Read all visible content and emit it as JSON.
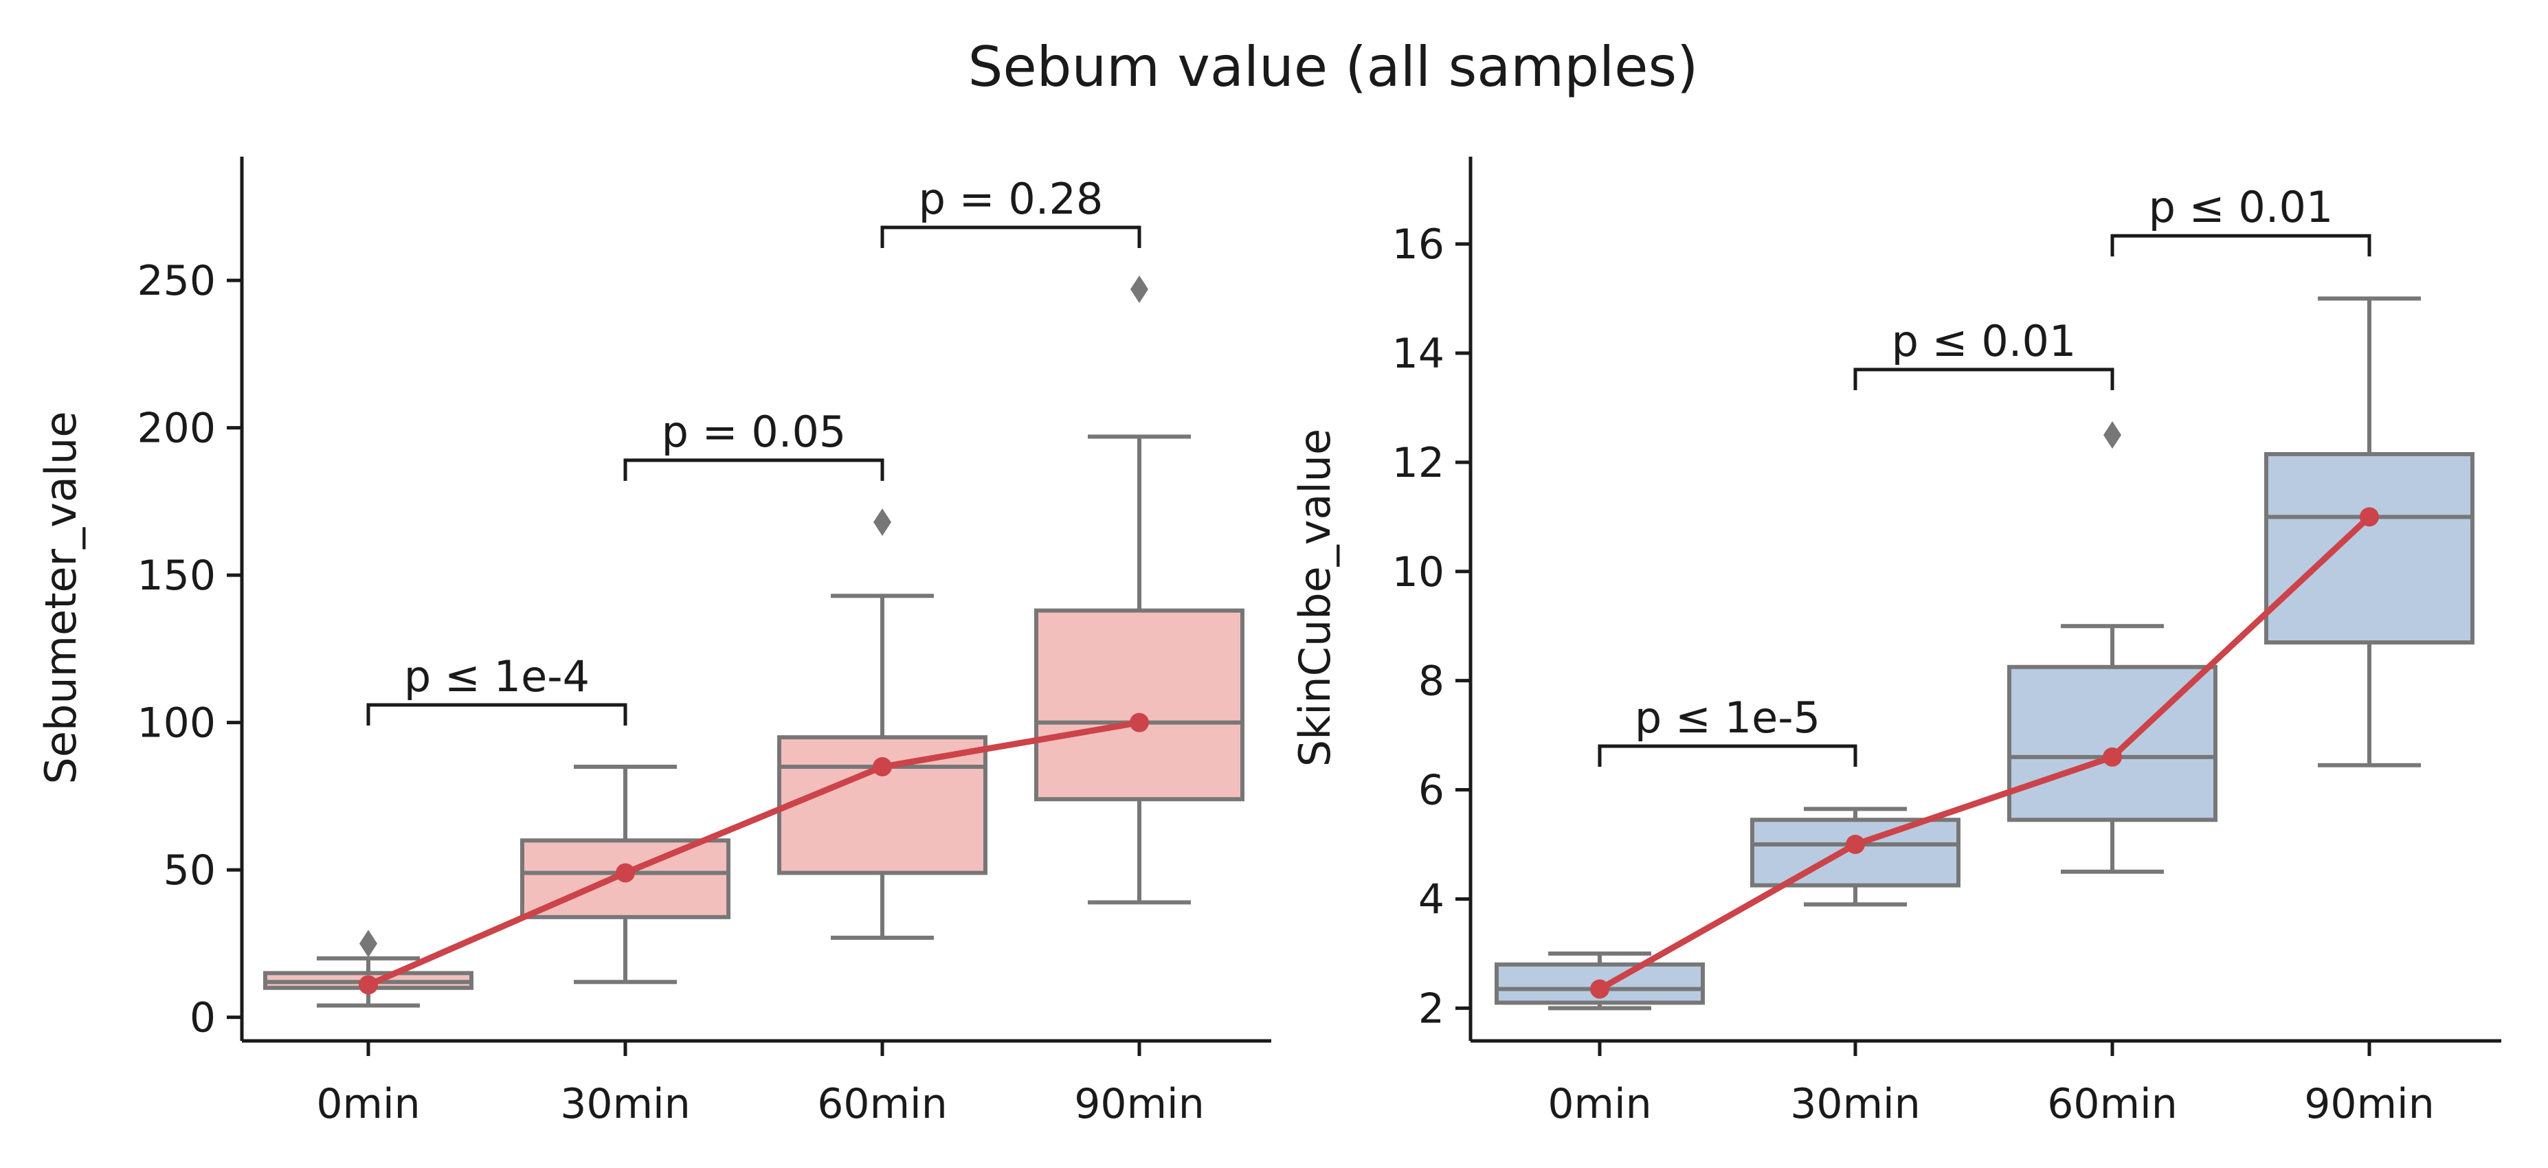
{
  "figure_title": "Sebum value (all samples)",
  "colors": {
    "box_left": "#f3bfbd",
    "box_right": "#b9cbe1",
    "box_edge": "#777777",
    "mean_line": "#cc4349",
    "axis": "#1a1a1a"
  },
  "chart_data": [
    {
      "type": "box",
      "title": "",
      "xlabel": "",
      "ylabel": "Sebumeter_value",
      "ylim": [
        -8,
        292
      ],
      "yticks": [
        0,
        50,
        100,
        150,
        200,
        250
      ],
      "ytick_labels": [
        "0",
        "50",
        "100",
        "150",
        "200",
        "250"
      ],
      "categories": [
        "0min",
        "30min",
        "60min",
        "90min"
      ],
      "boxes": [
        {
          "whisker_low": 4,
          "q1": 10,
          "median": 12,
          "q3": 15,
          "whisker_high": 20,
          "outliers": [
            25
          ]
        },
        {
          "whisker_low": 12,
          "q1": 34,
          "median": 49,
          "q3": 60,
          "whisker_high": 85,
          "outliers": []
        },
        {
          "whisker_low": 27,
          "q1": 49,
          "median": 85,
          "q3": 95,
          "whisker_high": 143,
          "outliers": [
            168
          ]
        },
        {
          "whisker_low": 39,
          "q1": 74,
          "median": 100,
          "q3": 138,
          "whisker_high": 197,
          "outliers": [
            247
          ]
        }
      ],
      "mean_line": [
        11,
        49,
        85,
        100
      ],
      "annotations": [
        {
          "from": 0,
          "to": 1,
          "y": 106,
          "label": "p ≤ 1e-4"
        },
        {
          "from": 1,
          "to": 2,
          "y": 189,
          "label": "p = 0.05"
        },
        {
          "from": 2,
          "to": 3,
          "y": 268,
          "label": "p = 0.28"
        }
      ]
    },
    {
      "type": "box",
      "title": "",
      "xlabel": "",
      "ylabel": "SkinCube_value",
      "ylim": [
        1.4,
        17.6
      ],
      "yticks": [
        2,
        4,
        6,
        8,
        10,
        12,
        14,
        16
      ],
      "ytick_labels": [
        "2",
        "4",
        "6",
        "8",
        "10",
        "12",
        "14",
        "16"
      ],
      "categories": [
        "0min",
        "30min",
        "60min",
        "90min"
      ],
      "boxes": [
        {
          "whisker_low": 2.0,
          "q1": 2.1,
          "median": 2.35,
          "q3": 2.8,
          "whisker_high": 3.0,
          "outliers": []
        },
        {
          "whisker_low": 3.9,
          "q1": 4.25,
          "median": 5.0,
          "q3": 5.45,
          "whisker_high": 5.65,
          "outliers": []
        },
        {
          "whisker_low": 4.5,
          "q1": 5.45,
          "median": 6.6,
          "q3": 8.25,
          "whisker_high": 9.0,
          "outliers": [
            12.5
          ]
        },
        {
          "whisker_low": 6.45,
          "q1": 8.7,
          "median": 11.0,
          "q3": 12.15,
          "whisker_high": 15.0,
          "outliers": []
        }
      ],
      "mean_line": [
        2.35,
        5.0,
        6.6,
        11.0
      ],
      "annotations": [
        {
          "from": 0,
          "to": 1,
          "y": 6.8,
          "label": "p ≤ 1e-5"
        },
        {
          "from": 1,
          "to": 2,
          "y": 13.7,
          "label": "p ≤ 0.01"
        },
        {
          "from": 2,
          "to": 3,
          "y": 16.15,
          "label": "p ≤ 0.01"
        }
      ]
    }
  ]
}
